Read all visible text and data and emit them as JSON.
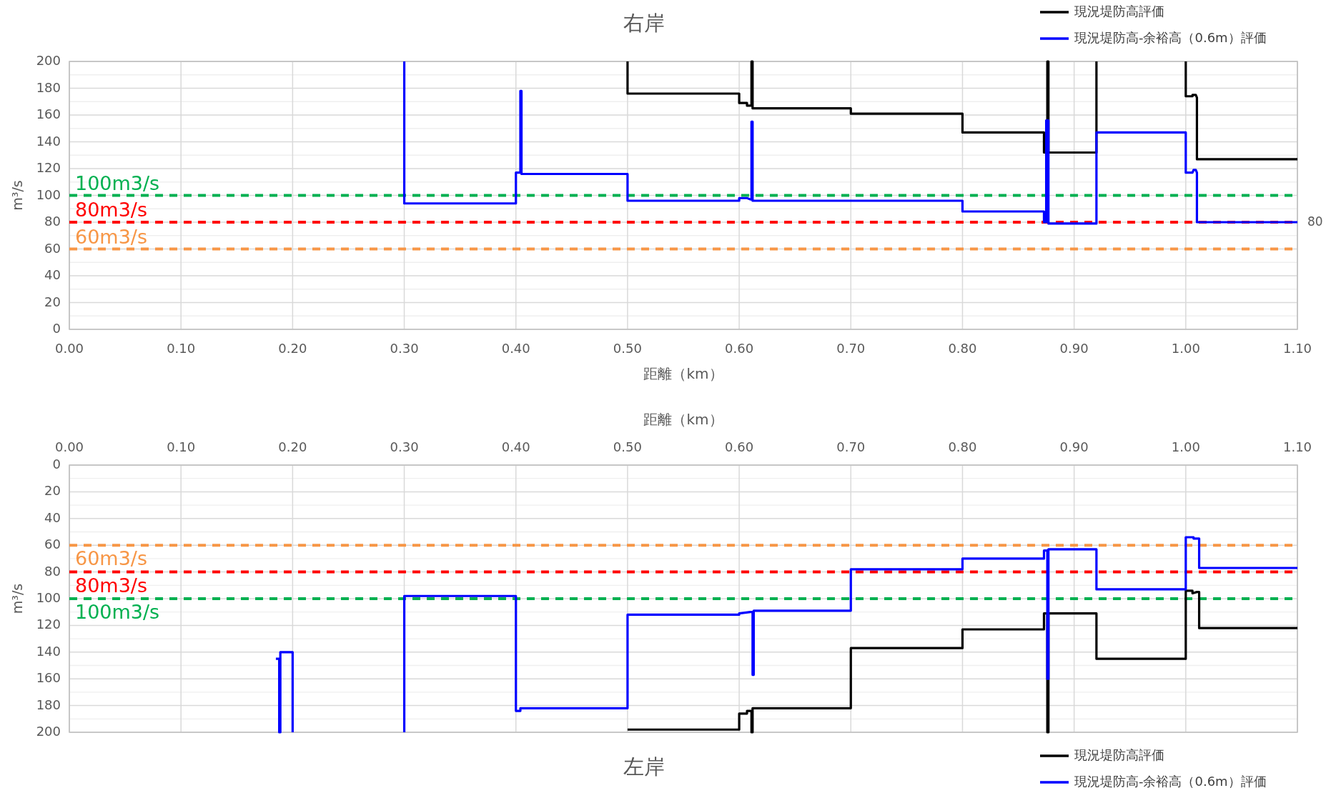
{
  "chart_data": [
    {
      "type": "line",
      "title": "右岸",
      "xlabel": "距離（km）",
      "ylabel": "m³/s",
      "xlim": [
        0,
        1.1
      ],
      "xticks": [
        {
          "value": 0,
          "label": "0.00"
        },
        {
          "value": 0.1,
          "label": "0.10"
        },
        {
          "value": 0.2,
          "label": "0.20"
        },
        {
          "value": 0.3,
          "label": "0.30"
        },
        {
          "value": 0.4,
          "label": "0.40"
        },
        {
          "value": 0.5,
          "label": "0.50"
        },
        {
          "value": 0.6,
          "label": "0.60"
        },
        {
          "value": 0.7,
          "label": "0.70"
        },
        {
          "value": 0.8,
          "label": "0.80"
        },
        {
          "value": 0.9,
          "label": "0.90"
        },
        {
          "value": 1.0,
          "label": "1.00"
        },
        {
          "value": 1.1,
          "label": "1.10"
        }
      ],
      "ylim": [
        0,
        200
      ],
      "yticks": [
        0,
        20,
        40,
        60,
        80,
        100,
        120,
        140,
        160,
        180,
        200
      ],
      "grid": true,
      "legend": "top right",
      "line_style": "solid",
      "ref_lines": [
        {
          "axis": "y",
          "value": 100,
          "label": "100m3/s",
          "color": "#00b050",
          "line_style": "dashed"
        },
        {
          "axis": "y",
          "value": 80,
          "label": "80m3/s",
          "color": "#ff0000",
          "line_style": "dashed"
        },
        {
          "axis": "y",
          "value": 60,
          "label": "60m3/s",
          "color": "#f79646",
          "line_style": "dashed"
        }
      ],
      "annotations": [
        {
          "text": "80",
          "x": 1.1,
          "y": 80
        }
      ],
      "series": [
        {
          "name": "現況堤防高評価",
          "color": "#000000",
          "x": [
            0.5,
            0.5,
            0.6,
            0.6,
            0.607,
            0.607,
            0.611,
            0.611,
            0.612,
            0.612,
            0.7,
            0.7,
            0.8,
            0.8,
            0.873,
            0.873,
            0.876,
            0.876,
            0.877,
            0.877,
            0.92,
            0.92,
            null,
            1.0,
            1.0,
            1.006,
            1.006,
            1.009,
            1.01,
            1.01,
            1.1
          ],
          "values": [
            200,
            176,
            176,
            169,
            169,
            167,
            167,
            200,
            200,
            165,
            165,
            161,
            161,
            147,
            147,
            132,
            132,
            200,
            200,
            132,
            132,
            200,
            null,
            200,
            174,
            174,
            175,
            175,
            173,
            127,
            127
          ]
        },
        {
          "name": "現況堤防高-余裕高（0.6m）評価",
          "color": "#0000ff",
          "x": [
            0.3,
            0.3,
            0.4,
            0.4,
            0.404,
            0.404,
            0.405,
            0.405,
            0.5,
            0.5,
            0.6,
            0.6,
            0.607,
            0.61,
            0.611,
            0.611,
            0.612,
            0.612,
            0.8,
            0.8,
            0.873,
            0.873,
            0.875,
            0.875,
            0.877,
            0.877,
            0.92,
            0.92,
            1.0,
            1.0,
            1.006,
            1.007,
            1.009,
            1.01,
            1.01,
            1.1
          ],
          "values": [
            200,
            94,
            94,
            117,
            117,
            178,
            178,
            116,
            116,
            96,
            96,
            98,
            98,
            97,
            97,
            155,
            155,
            96,
            96,
            88,
            88,
            80,
            80,
            156,
            156,
            79,
            79,
            147,
            147,
            117,
            117,
            119,
            119,
            117,
            80,
            80
          ]
        }
      ]
    },
    {
      "type": "line",
      "title": "左岸",
      "xlabel": "距離（km）",
      "ylabel": "m³/s",
      "xlim": [
        0,
        1.1
      ],
      "xticks": [
        {
          "value": 0,
          "label": "0.00"
        },
        {
          "value": 0.1,
          "label": "0.10"
        },
        {
          "value": 0.2,
          "label": "0.20"
        },
        {
          "value": 0.3,
          "label": "0.30"
        },
        {
          "value": 0.4,
          "label": "0.40"
        },
        {
          "value": 0.5,
          "label": "0.50"
        },
        {
          "value": 0.6,
          "label": "0.60"
        },
        {
          "value": 0.7,
          "label": "0.70"
        },
        {
          "value": 0.8,
          "label": "0.80"
        },
        {
          "value": 0.9,
          "label": "0.90"
        },
        {
          "value": 1.0,
          "label": "1.00"
        },
        {
          "value": 1.1,
          "label": "1.10"
        }
      ],
      "ylim": [
        200,
        0
      ],
      "yticks": [
        0,
        20,
        40,
        60,
        80,
        100,
        120,
        140,
        160,
        180,
        200
      ],
      "grid": true,
      "legend": "bottom right",
      "line_style": "solid",
      "ref_lines": [
        {
          "axis": "y",
          "value": 60,
          "label": "60m3/s",
          "color": "#f79646",
          "line_style": "dashed"
        },
        {
          "axis": "y",
          "value": 80,
          "label": "80m3/s",
          "color": "#ff0000",
          "line_style": "dashed"
        },
        {
          "axis": "y",
          "value": 100,
          "label": "100m3/s",
          "color": "#00b050",
          "line_style": "dashed"
        }
      ],
      "series": [
        {
          "name": "現況堤防高評価",
          "color": "#000000",
          "x": [
            0.5,
            0.6,
            0.6,
            0.607,
            0.607,
            0.611,
            0.611,
            0.612,
            0.612,
            0.7,
            0.7,
            0.8,
            0.8,
            0.873,
            0.873,
            0.876,
            0.876,
            0.877,
            0.877,
            0.92,
            0.92,
            1.0,
            1.0,
            1.006,
            1.006,
            1.01,
            1.012,
            1.012,
            1.1
          ],
          "values": [
            198,
            198,
            186,
            186,
            184,
            184,
            200,
            200,
            182,
            182,
            137,
            137,
            123,
            123,
            111,
            111,
            200,
            200,
            111,
            111,
            145,
            145,
            94,
            94,
            96,
            95,
            95,
            122,
            122
          ]
        },
        {
          "name": "現況堤防高-余裕高（0.6m）評価",
          "color": "#0000ff",
          "x": [
            0.185,
            0.188,
            0.188,
            0.189,
            0.189,
            0.2,
            0.2,
            null,
            0.3,
            0.3,
            0.4,
            0.4,
            0.404,
            0.404,
            0.5,
            0.5,
            0.6,
            0.6,
            0.61,
            0.612,
            0.612,
            0.613,
            0.613,
            0.7,
            0.7,
            0.8,
            0.8,
            0.873,
            0.873,
            0.876,
            0.876,
            0.877,
            0.877,
            0.92,
            0.92,
            1.0,
            1.0,
            1.007,
            1.007,
            1.012,
            1.012,
            1.1
          ],
          "values": [
            145,
            145,
            200,
            200,
            140,
            140,
            200,
            null,
            200,
            98,
            98,
            184,
            184,
            182,
            182,
            112,
            112,
            111,
            110,
            110,
            157,
            157,
            109,
            109,
            78,
            78,
            70,
            70,
            64,
            64,
            160,
            160,
            63,
            63,
            93,
            93,
            54,
            54,
            55,
            55,
            77,
            77
          ]
        }
      ]
    }
  ]
}
